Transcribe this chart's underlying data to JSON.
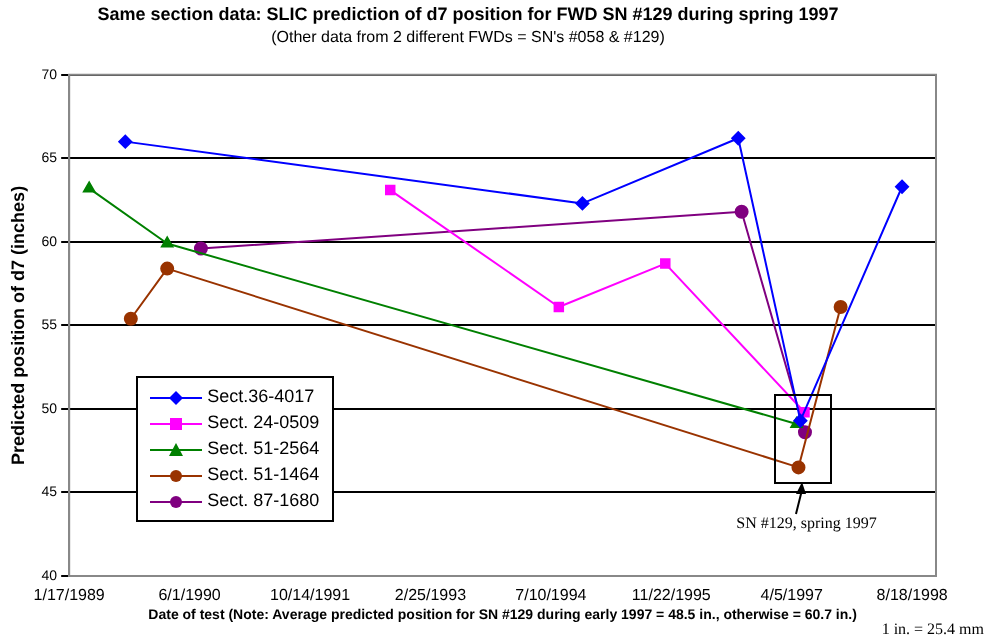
{
  "chart_data": {
    "type": "line",
    "title": "Same section data: SLIC prediction of d7 position for FWD SN #129 during spring 1997",
    "subtitle": "(Other data from 2 different FWDs = SN's #058 & #129)",
    "xlabel": "Date of test (Note: Average predicted position for SN #129 during early 1997 = 48.5 in., otherwise = 60.7 in.)",
    "ylabel": "Predicted position of d7 (inches)",
    "annotations": [
      "SN #129, spring 1997",
      "1 in. = 25.4 mm"
    ],
    "series": [
      {
        "name": "Sect.36-4017",
        "color": "#0000ff",
        "marker": "diamond",
        "x": [
          "1989-09-07",
          "1994-11-18",
          "1996-08-26",
          "1997-05-11",
          "1998-07-07"
        ],
        "values": [
          66,
          62.3,
          66.2,
          49.3,
          63.3
        ]
      },
      {
        "name": "Sect. 24-0509",
        "color": "#ff00ff",
        "marker": "square",
        "x": [
          "1992-09-11",
          "1994-08-12",
          "1995-10-28",
          "1997-05-28"
        ],
        "values": [
          63.1,
          56.1,
          58.7,
          49.8
        ]
      },
      {
        "name": "Sect. 51-2564",
        "color": "#008000",
        "marker": "triangle",
        "x": [
          "1989-04-10",
          "1990-02-28",
          "1997-04-25"
        ],
        "values": [
          63.2,
          59.9,
          49.1
        ]
      },
      {
        "name": "Sect. 51-1464",
        "color": "#993300",
        "marker": "circle",
        "x": [
          "1989-09-30",
          "1990-02-28",
          "1997-05-03",
          "1997-10-25"
        ],
        "values": [
          55.4,
          58.4,
          46.5,
          56.1
        ]
      },
      {
        "name": "Sect. 87-1680",
        "color": "#800080",
        "marker": "circle",
        "x": [
          "1990-07-18",
          "1996-09-09",
          "1997-05-30"
        ],
        "values": [
          59.6,
          61.8,
          48.6
        ]
      }
    ],
    "xlim": [
      "1989-01-17",
      "1998-11-25"
    ],
    "xticks": [
      {
        "value": "1989-01-17",
        "label": "1/17/1989"
      },
      {
        "value": "1990-06-01",
        "label": "6/1/1990"
      },
      {
        "value": "1991-10-14",
        "label": "10/14/1991"
      },
      {
        "value": "1993-02-25",
        "label": "2/25/1993"
      },
      {
        "value": "1994-07-10",
        "label": "7/10/1994"
      },
      {
        "value": "1995-11-22",
        "label": "11/22/1995"
      },
      {
        "value": "1997-04-05",
        "label": "4/5/1997"
      },
      {
        "value": "1998-08-18",
        "label": "8/18/1998"
      }
    ],
    "ylim": [
      40,
      70
    ],
    "yticks": [
      40,
      45,
      50,
      55,
      60,
      65,
      70
    ],
    "grid": "y",
    "legend": "bottom left",
    "line_style": "solid"
  }
}
